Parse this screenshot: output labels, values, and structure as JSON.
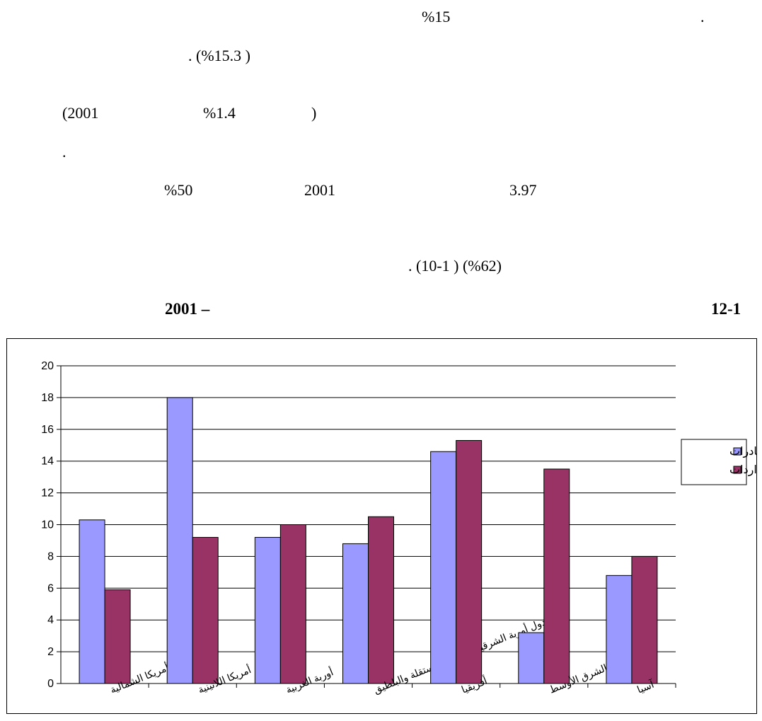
{
  "text_lines": {
    "l1_a": "%15",
    "l1_b": ".",
    "l2": ". (%15.3 )",
    "l3_a": "(2001",
    "l3_b": "%1.4",
    "l3_c": ")",
    "l4": ".",
    "l5_a": "%50",
    "l5_b": "2001",
    "l5_c": "3.97",
    "l6": ". (10-1       ) (%62)"
  },
  "figure": {
    "year_label": "2001 –",
    "number_label": "12-1"
  },
  "chart_data": {
    "type": "bar",
    "categories": [
      "أمريكا الشمالية",
      "أمريكا اللاتينية",
      "أوربة الغربية",
      "دول أوربة الشرقية والدول المستقلة والبلطيق",
      "أفريقيا",
      "الشرق الأوسط",
      "آسيا"
    ],
    "series": [
      {
        "name": "الصادرات",
        "color": "#9999ff",
        "values": [
          10.3,
          18.0,
          9.2,
          8.8,
          14.6,
          3.2,
          6.8
        ]
      },
      {
        "name": "الواردات",
        "color": "#993366",
        "values": [
          5.9,
          9.2,
          10.0,
          10.5,
          15.3,
          13.5,
          8.0
        ]
      }
    ],
    "ylim": [
      0,
      20
    ],
    "yticks": [
      0,
      2,
      4,
      6,
      8,
      10,
      12,
      14,
      16,
      18,
      20
    ],
    "grid": true,
    "legend_position": "right",
    "title": "",
    "xlabel": "",
    "ylabel": ""
  }
}
